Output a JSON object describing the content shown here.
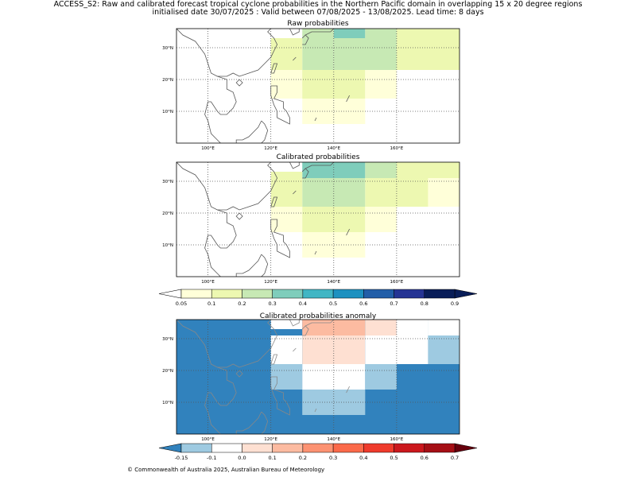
{
  "page": {
    "title_line1": "ACCESS_S2: Raw and calibrated forecast tropical cyclone probabilities in the Northern Pacific domain in overlapping 15 x 20 degree regions",
    "title_line2": "initialised date 30/07/2025 :  Valid between 07/08/2025 - 13/08/2025. Lead time: 8 days",
    "footer": "© Commonwealth of Australia 2025, Australian Bureau of Meteorology"
  },
  "colors": {
    "prob_scale": [
      "#ffffd9",
      "#edf8b1",
      "#c7e9b4",
      "#7fcdbb",
      "#41b6c4",
      "#1d91c0",
      "#225ea8",
      "#253494",
      "#081d58"
    ],
    "anom_scale": [
      "#3182bd",
      "#9ecae1",
      "#ffffff",
      "#fee0d2",
      "#fcbba1",
      "#fc9272",
      "#fb6a4a",
      "#ef3b2c",
      "#cb181d",
      "#a50f15",
      "#67000d"
    ],
    "coast": "#555555",
    "coast_anom": "#888888"
  },
  "chart_data": [
    {
      "type": "heatmap",
      "title": "Raw probabilities",
      "x_ticks": [
        "100°E",
        "120°E",
        "140°E",
        "160°E"
      ],
      "y_ticks": [
        "10°N",
        "20°N",
        "30°N"
      ],
      "xlim": [
        90,
        180
      ],
      "ylim": [
        0,
        36
      ],
      "grid": true,
      "cells": [
        {
          "lon": [
            130,
            140
          ],
          "lat": [
            33,
            38
          ],
          "value": 0.25
        },
        {
          "lon": [
            140,
            150
          ],
          "lat": [
            33,
            38
          ],
          "value": 0.35
        },
        {
          "lon": [
            150,
            160
          ],
          "lat": [
            33,
            38
          ],
          "value": 0.25
        },
        {
          "lon": [
            160,
            180
          ],
          "lat": [
            33,
            38
          ],
          "value": 0.15
        },
        {
          "lon": [
            130,
            140
          ],
          "lat": [
            23,
            33
          ],
          "value": 0.25
        },
        {
          "lon": [
            140,
            160
          ],
          "lat": [
            23,
            33
          ],
          "value": 0.25
        },
        {
          "lon": [
            160,
            180
          ],
          "lat": [
            23,
            33
          ],
          "value": 0.15
        },
        {
          "lon": [
            120,
            130
          ],
          "lat": [
            18,
            33
          ],
          "value": 0.15
        },
        {
          "lon": [
            120,
            130
          ],
          "lat": [
            14,
            23
          ],
          "value": 0.07
        },
        {
          "lon": [
            130,
            150
          ],
          "lat": [
            14,
            23
          ],
          "value": 0.15
        },
        {
          "lon": [
            150,
            160
          ],
          "lat": [
            14,
            23
          ],
          "value": 0.07
        },
        {
          "lon": [
            130,
            150
          ],
          "lat": [
            6,
            14
          ],
          "value": 0.07
        }
      ]
    },
    {
      "type": "heatmap",
      "title": "Calibrated probabilities",
      "x_ticks": [
        "100°E",
        "120°E",
        "140°E",
        "160°E"
      ],
      "y_ticks": [
        "10°N",
        "20°N",
        "30°N"
      ],
      "xlim": [
        90,
        180
      ],
      "ylim": [
        0,
        36
      ],
      "grid": true,
      "cells": [
        {
          "lon": [
            130,
            150
          ],
          "lat": [
            31,
            36
          ],
          "value": 0.35
        },
        {
          "lon": [
            150,
            160
          ],
          "lat": [
            31,
            36
          ],
          "value": 0.25
        },
        {
          "lon": [
            160,
            180
          ],
          "lat": [
            31,
            36
          ],
          "value": 0.15
        },
        {
          "lon": [
            130,
            150
          ],
          "lat": [
            22,
            31
          ],
          "value": 0.25
        },
        {
          "lon": [
            150,
            170
          ],
          "lat": [
            22,
            31
          ],
          "value": 0.15
        },
        {
          "lon": [
            170,
            180
          ],
          "lat": [
            22,
            31
          ],
          "value": 0.07
        },
        {
          "lon": [
            120,
            130
          ],
          "lat": [
            22,
            33
          ],
          "value": 0.15
        },
        {
          "lon": [
            120,
            130
          ],
          "lat": [
            14,
            22
          ],
          "value": 0.07
        },
        {
          "lon": [
            130,
            150
          ],
          "lat": [
            14,
            22
          ],
          "value": 0.15
        },
        {
          "lon": [
            150,
            160
          ],
          "lat": [
            14,
            22
          ],
          "value": 0.07
        },
        {
          "lon": [
            130,
            150
          ],
          "lat": [
            6,
            14
          ],
          "value": 0.07
        }
      ]
    },
    {
      "type": "heatmap",
      "title": "Calibrated probabilities anomaly",
      "x_ticks": [
        "100°E",
        "120°E",
        "140°E",
        "160°E"
      ],
      "y_ticks": [
        "10°N",
        "20°N",
        "30°N"
      ],
      "xlim": [
        90,
        180
      ],
      "ylim": [
        0,
        36
      ],
      "grid": true,
      "background_value": -0.15,
      "cells": [
        {
          "lon": [
            120,
            130
          ],
          "lat": [
            33,
            36
          ],
          "value": 0.0
        },
        {
          "lon": [
            130,
            150
          ],
          "lat": [
            31,
            36
          ],
          "value": 0.15
        },
        {
          "lon": [
            150,
            160
          ],
          "lat": [
            31,
            36
          ],
          "value": 0.05
        },
        {
          "lon": [
            160,
            170
          ],
          "lat": [
            31,
            36
          ],
          "value": 0.0
        },
        {
          "lon": [
            170,
            180
          ],
          "lat": [
            31,
            36
          ],
          "value": 0.0
        },
        {
          "lon": [
            120,
            130
          ],
          "lat": [
            22,
            31
          ],
          "value": 0.0
        },
        {
          "lon": [
            130,
            150
          ],
          "lat": [
            22,
            31
          ],
          "value": 0.05
        },
        {
          "lon": [
            150,
            170
          ],
          "lat": [
            22,
            31
          ],
          "value": 0.0
        },
        {
          "lon": [
            170,
            180
          ],
          "lat": [
            22,
            31
          ],
          "value": -0.1
        },
        {
          "lon": [
            120,
            130
          ],
          "lat": [
            14,
            22
          ],
          "value": -0.1
        },
        {
          "lon": [
            130,
            150
          ],
          "lat": [
            14,
            22
          ],
          "value": 0.0
        },
        {
          "lon": [
            150,
            160
          ],
          "lat": [
            14,
            22
          ],
          "value": -0.1
        },
        {
          "lon": [
            130,
            150
          ],
          "lat": [
            6,
            14
          ],
          "value": -0.1
        }
      ]
    }
  ],
  "colorbars": {
    "probability": {
      "boundaries": [
        0.05,
        0.1,
        0.2,
        0.3,
        0.4,
        0.5,
        0.6,
        0.7,
        0.8,
        0.9
      ],
      "labels": [
        "0.05",
        "0.1",
        "0.2",
        "0.3",
        "0.4",
        "0.5",
        "0.6",
        "0.7",
        "0.8",
        "0.9"
      ]
    },
    "anomaly": {
      "boundaries": [
        -0.15,
        -0.1,
        0.0,
        0.1,
        0.2,
        0.3,
        0.4,
        0.5,
        0.6,
        0.7
      ],
      "labels": [
        "-0.15",
        "-0.1",
        "0.0",
        "0.1",
        "0.2",
        "0.3",
        "0.4",
        "0.5",
        "0.6",
        "0.7"
      ]
    }
  }
}
